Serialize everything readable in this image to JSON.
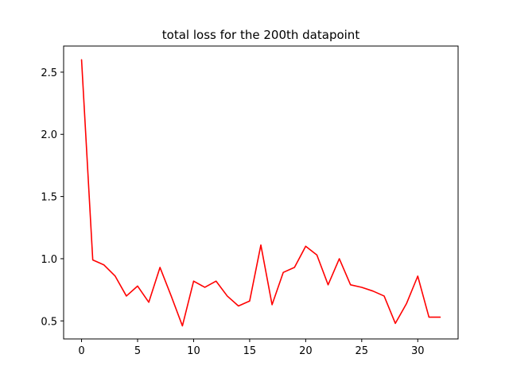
{
  "chart_data": {
    "type": "line",
    "title": "total loss for the 200th datapoint",
    "xlabel": "",
    "ylabel": "",
    "xlim": [
      -1.6,
      33.6
    ],
    "ylim": [
      0.355,
      2.71
    ],
    "xticks": [
      0,
      5,
      10,
      15,
      20,
      25,
      30
    ],
    "yticks": [
      0.5,
      1.0,
      1.5,
      2.0,
      2.5
    ],
    "ytick_labels": [
      "0.5",
      "1.0",
      "1.5",
      "2.0",
      "2.5"
    ],
    "grid": false,
    "legend": "none",
    "series": [
      {
        "color": "#ff0000",
        "x": [
          0,
          1,
          2,
          3,
          4,
          5,
          6,
          7,
          8,
          9,
          10,
          11,
          12,
          13,
          14,
          15,
          16,
          17,
          18,
          19,
          20,
          21,
          22,
          23,
          24,
          25,
          26,
          27,
          28,
          29,
          30,
          31,
          32
        ],
        "y": [
          2.6,
          0.99,
          0.95,
          0.86,
          0.7,
          0.78,
          0.65,
          0.93,
          0.7,
          0.46,
          0.82,
          0.77,
          0.82,
          0.7,
          0.62,
          0.66,
          1.11,
          0.63,
          0.89,
          0.93,
          1.1,
          1.03,
          0.79,
          1.0,
          0.79,
          0.77,
          0.74,
          0.7,
          0.48,
          0.64,
          0.86,
          0.53,
          0.53
        ]
      }
    ]
  }
}
